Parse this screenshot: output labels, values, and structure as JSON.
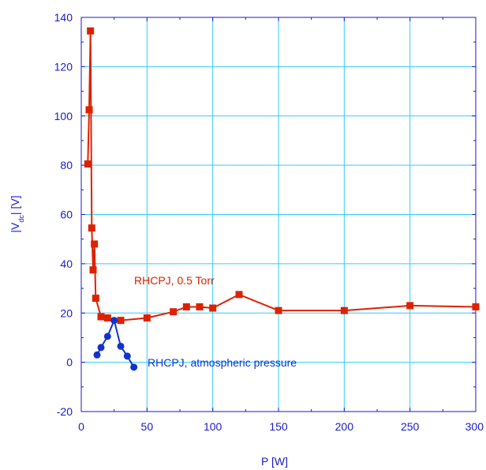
{
  "chart_data": {
    "type": "line",
    "title": "",
    "xlabel": "P [W]",
    "ylabel_main": "|V",
    "ylabel_sub": "dc",
    "ylabel_end": "| [V]",
    "xlim": [
      0,
      300
    ],
    "ylim": [
      -20,
      140
    ],
    "xticks": [
      0,
      50,
      100,
      150,
      200,
      250,
      300
    ],
    "yticks": [
      -20,
      0,
      20,
      40,
      60,
      80,
      100,
      120,
      140
    ],
    "xtick_labels": [
      "0",
      "50",
      "100",
      "150",
      "200",
      "250",
      "300"
    ],
    "ytick_labels": [
      "-20",
      "0",
      "20",
      "40",
      "60",
      "80",
      "100",
      "120",
      "140"
    ],
    "grid": true,
    "colors": {
      "axis": "#1a1acc",
      "grid": "#33ccff"
    },
    "series": [
      {
        "name": "RHCPJ, 0.5 Torr",
        "color": "#dd2200",
        "marker": "square",
        "x": [
          5,
          6,
          7,
          8,
          9,
          10,
          11,
          15,
          20,
          30,
          50,
          70,
          80,
          90,
          100,
          120,
          150,
          200,
          250,
          300
        ],
        "y": [
          80.5,
          102.5,
          134.5,
          54.5,
          37.5,
          48,
          26,
          18.5,
          18,
          17,
          18,
          20.5,
          22.5,
          22.5,
          22,
          27.5,
          21,
          21,
          23,
          22.5
        ]
      },
      {
        "name": "RHCPJ, atmospheric pressure",
        "color": "#1133cc",
        "marker": "circle",
        "x": [
          12,
          15,
          20,
          25,
          30,
          35,
          40
        ],
        "y": [
          3,
          6,
          10.5,
          17,
          6.5,
          2.5,
          -2
        ]
      }
    ]
  }
}
